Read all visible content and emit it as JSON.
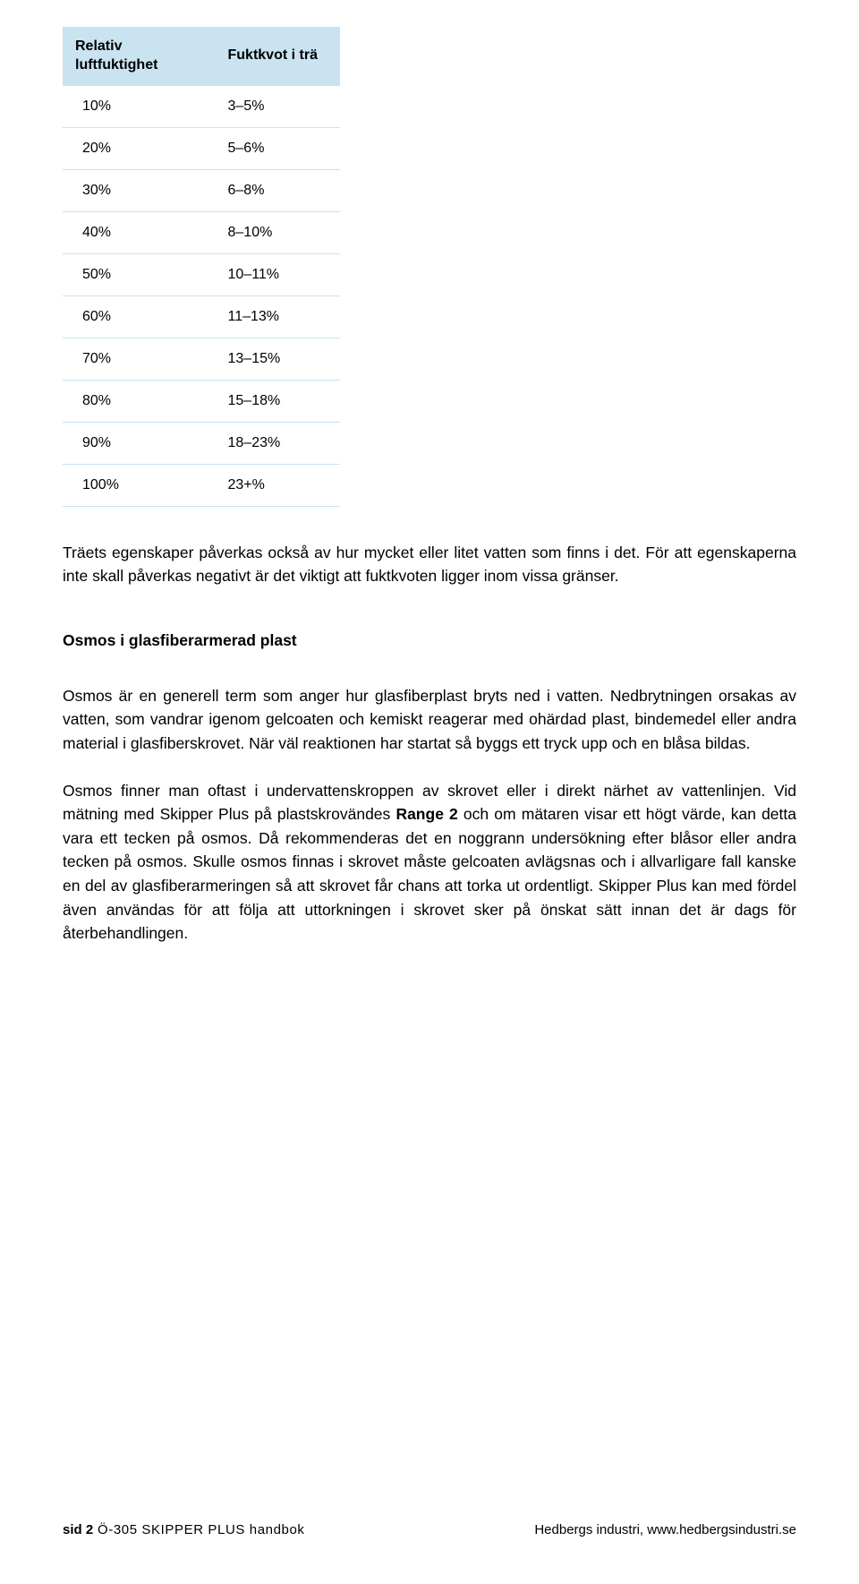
{
  "table": {
    "header_a": "Relativ luftfuktighet",
    "header_b": "Fuktkvot i trä",
    "rows": [
      {
        "a": "10%",
        "b": "3–5%"
      },
      {
        "a": "20%",
        "b": "5–6%"
      },
      {
        "a": "30%",
        "b": "6–8%"
      },
      {
        "a": "40%",
        "b": "8–10%"
      },
      {
        "a": "50%",
        "b": "10–11%"
      },
      {
        "a": "60%",
        "b": "11–13%"
      },
      {
        "a": "70%",
        "b": "13–15%"
      },
      {
        "a": "80%",
        "b": "15–18%"
      },
      {
        "a": "90%",
        "b": "18–23%"
      },
      {
        "a": "100%",
        "b": "23+%"
      }
    ],
    "header_bg": "#c9e3f0",
    "row_border": "#c9e3f0",
    "fontsize": 16
  },
  "paragraphs": {
    "p1": "Träets egenskaper påverkas också av hur mycket eller litet vatten som finns i det. För att egenskaperna inte skall påverkas negativt är det viktigt att fuktkvoten ligger inom vissa gränser.",
    "h1": "Osmos i glasfiberarmerad plast",
    "p2": "Osmos är en generell term som anger hur glasfiberplast bryts ned i vatten. Nedbrytningen orsakas av vatten, som vandrar igenom gelcoaten och kemiskt reagerar med ohärdad plast, bindemedel eller andra material i glasfiberskrovet. När väl reaktionen har startat så byggs ett tryck upp och en blåsa bildas.",
    "p3a": "Osmos finner man oftast i undervattenskroppen av skrovet eller i direkt närhet av vattenlinjen. Vid mätning med Skipper Plus på plastskrovändes ",
    "p3_bold": "Range 2",
    "p3b": " och om mätaren visar ett högt värde, kan detta vara ett tecken på osmos. Då rekommenderas det en noggrann undersökning efter blåsor eller andra tecken på osmos. Skulle osmos finnas i skrovet måste gelcoaten avlägsnas och i allvarligare fall kanske en del av glasfiberarmeringen så att skrovet får chans att torka ut ordentligt. Skipper Plus kan med fördel även användas för att följa att uttorkningen i skrovet sker på önskat sätt innan det är dags för återbehandlingen."
  },
  "footer": {
    "page_label": "sid 2",
    "doc_title": " Ö-305 SKIPPER PLUS handbok",
    "right": "Hedbergs industri, www.hedbergsindustri.se"
  }
}
